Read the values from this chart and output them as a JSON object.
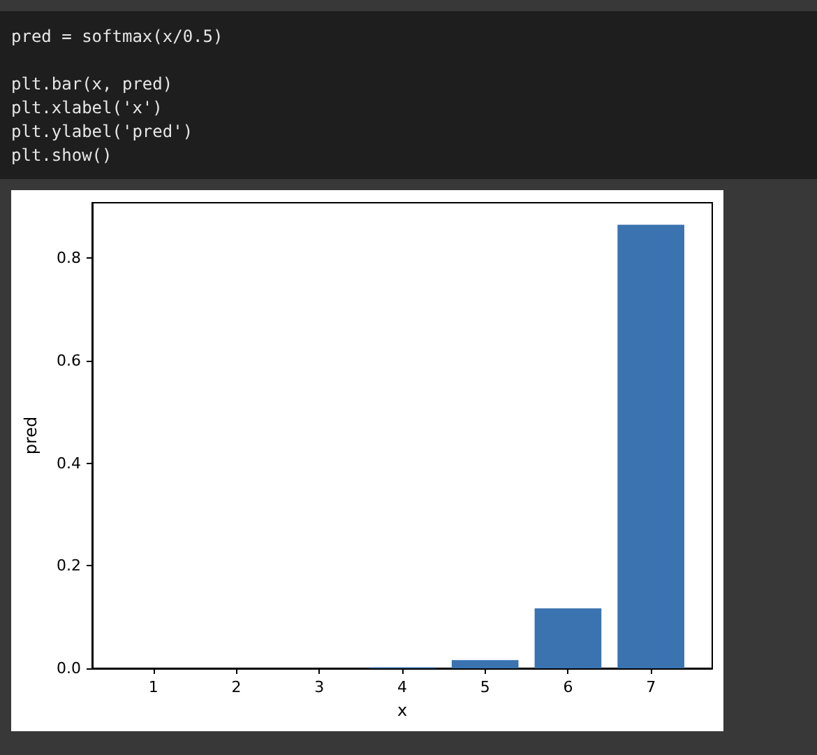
{
  "chart_data": {
    "type": "bar",
    "annotations": [
      "pred = softmax(x/0.5)",
      "plt.bar(x, pred)",
      "plt.xlabel('x')",
      "plt.ylabel('pred')",
      "plt.show()"
    ],
    "x": [
      1,
      2,
      3,
      4,
      5,
      6,
      7
    ],
    "values": [
      0,
      0,
      0,
      0.002,
      0.016,
      0.117,
      0.865
    ],
    "color": "#3a73b0",
    "xlabel": "x",
    "ylabel": "pred",
    "xlim": [
      0.26,
      7.74
    ],
    "xticks": [
      1,
      2,
      3,
      4,
      5,
      6,
      7
    ],
    "ylim": [
      0,
      0.908
    ],
    "yticks": [
      {
        "value": 0,
        "label": "0.0"
      },
      0.2,
      0.4,
      0.6,
      0.8
    ],
    "grid": false
  }
}
